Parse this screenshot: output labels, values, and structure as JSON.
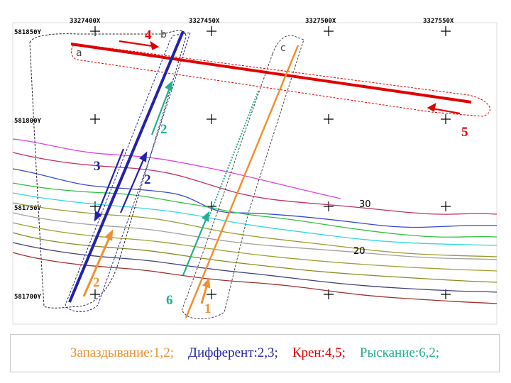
{
  "grid": {
    "x_labels": [
      "3327400X",
      "3327450X",
      "3327500X",
      "3327550X"
    ],
    "y_labels": [
      "581850Y",
      "581800Y",
      "581750Y",
      "581700Y"
    ]
  },
  "contour_labels": [
    "30",
    "20"
  ],
  "survey_lines": [
    {
      "letter": "a",
      "label_number": "4",
      "color": "#e00000"
    },
    {
      "letter": "b",
      "color": "#2222aa"
    },
    {
      "letter": "c",
      "color": "#f09030"
    }
  ],
  "arrow_numbers": [
    {
      "text": "4",
      "color": "#e00000"
    },
    {
      "text": "5",
      "color": "#e00000"
    },
    {
      "text": "2",
      "color": "#20b090"
    },
    {
      "text": "3",
      "color": "#2222aa"
    },
    {
      "text": "2",
      "color": "#2222aa"
    },
    {
      "text": "2",
      "color": "#f09030"
    },
    {
      "text": "6",
      "color": "#20b090"
    },
    {
      "text": "1",
      "color": "#f09030"
    }
  ],
  "legend": [
    {
      "text": "Запаздывание:1,2;",
      "color": "#f09030"
    },
    {
      "text": "Дифферент:2,3;",
      "color": "#2222aa"
    },
    {
      "text": "Крен:4,5;",
      "color": "#e00000"
    },
    {
      "text": "Рыскание:6,2;",
      "color": "#20b090"
    }
  ]
}
